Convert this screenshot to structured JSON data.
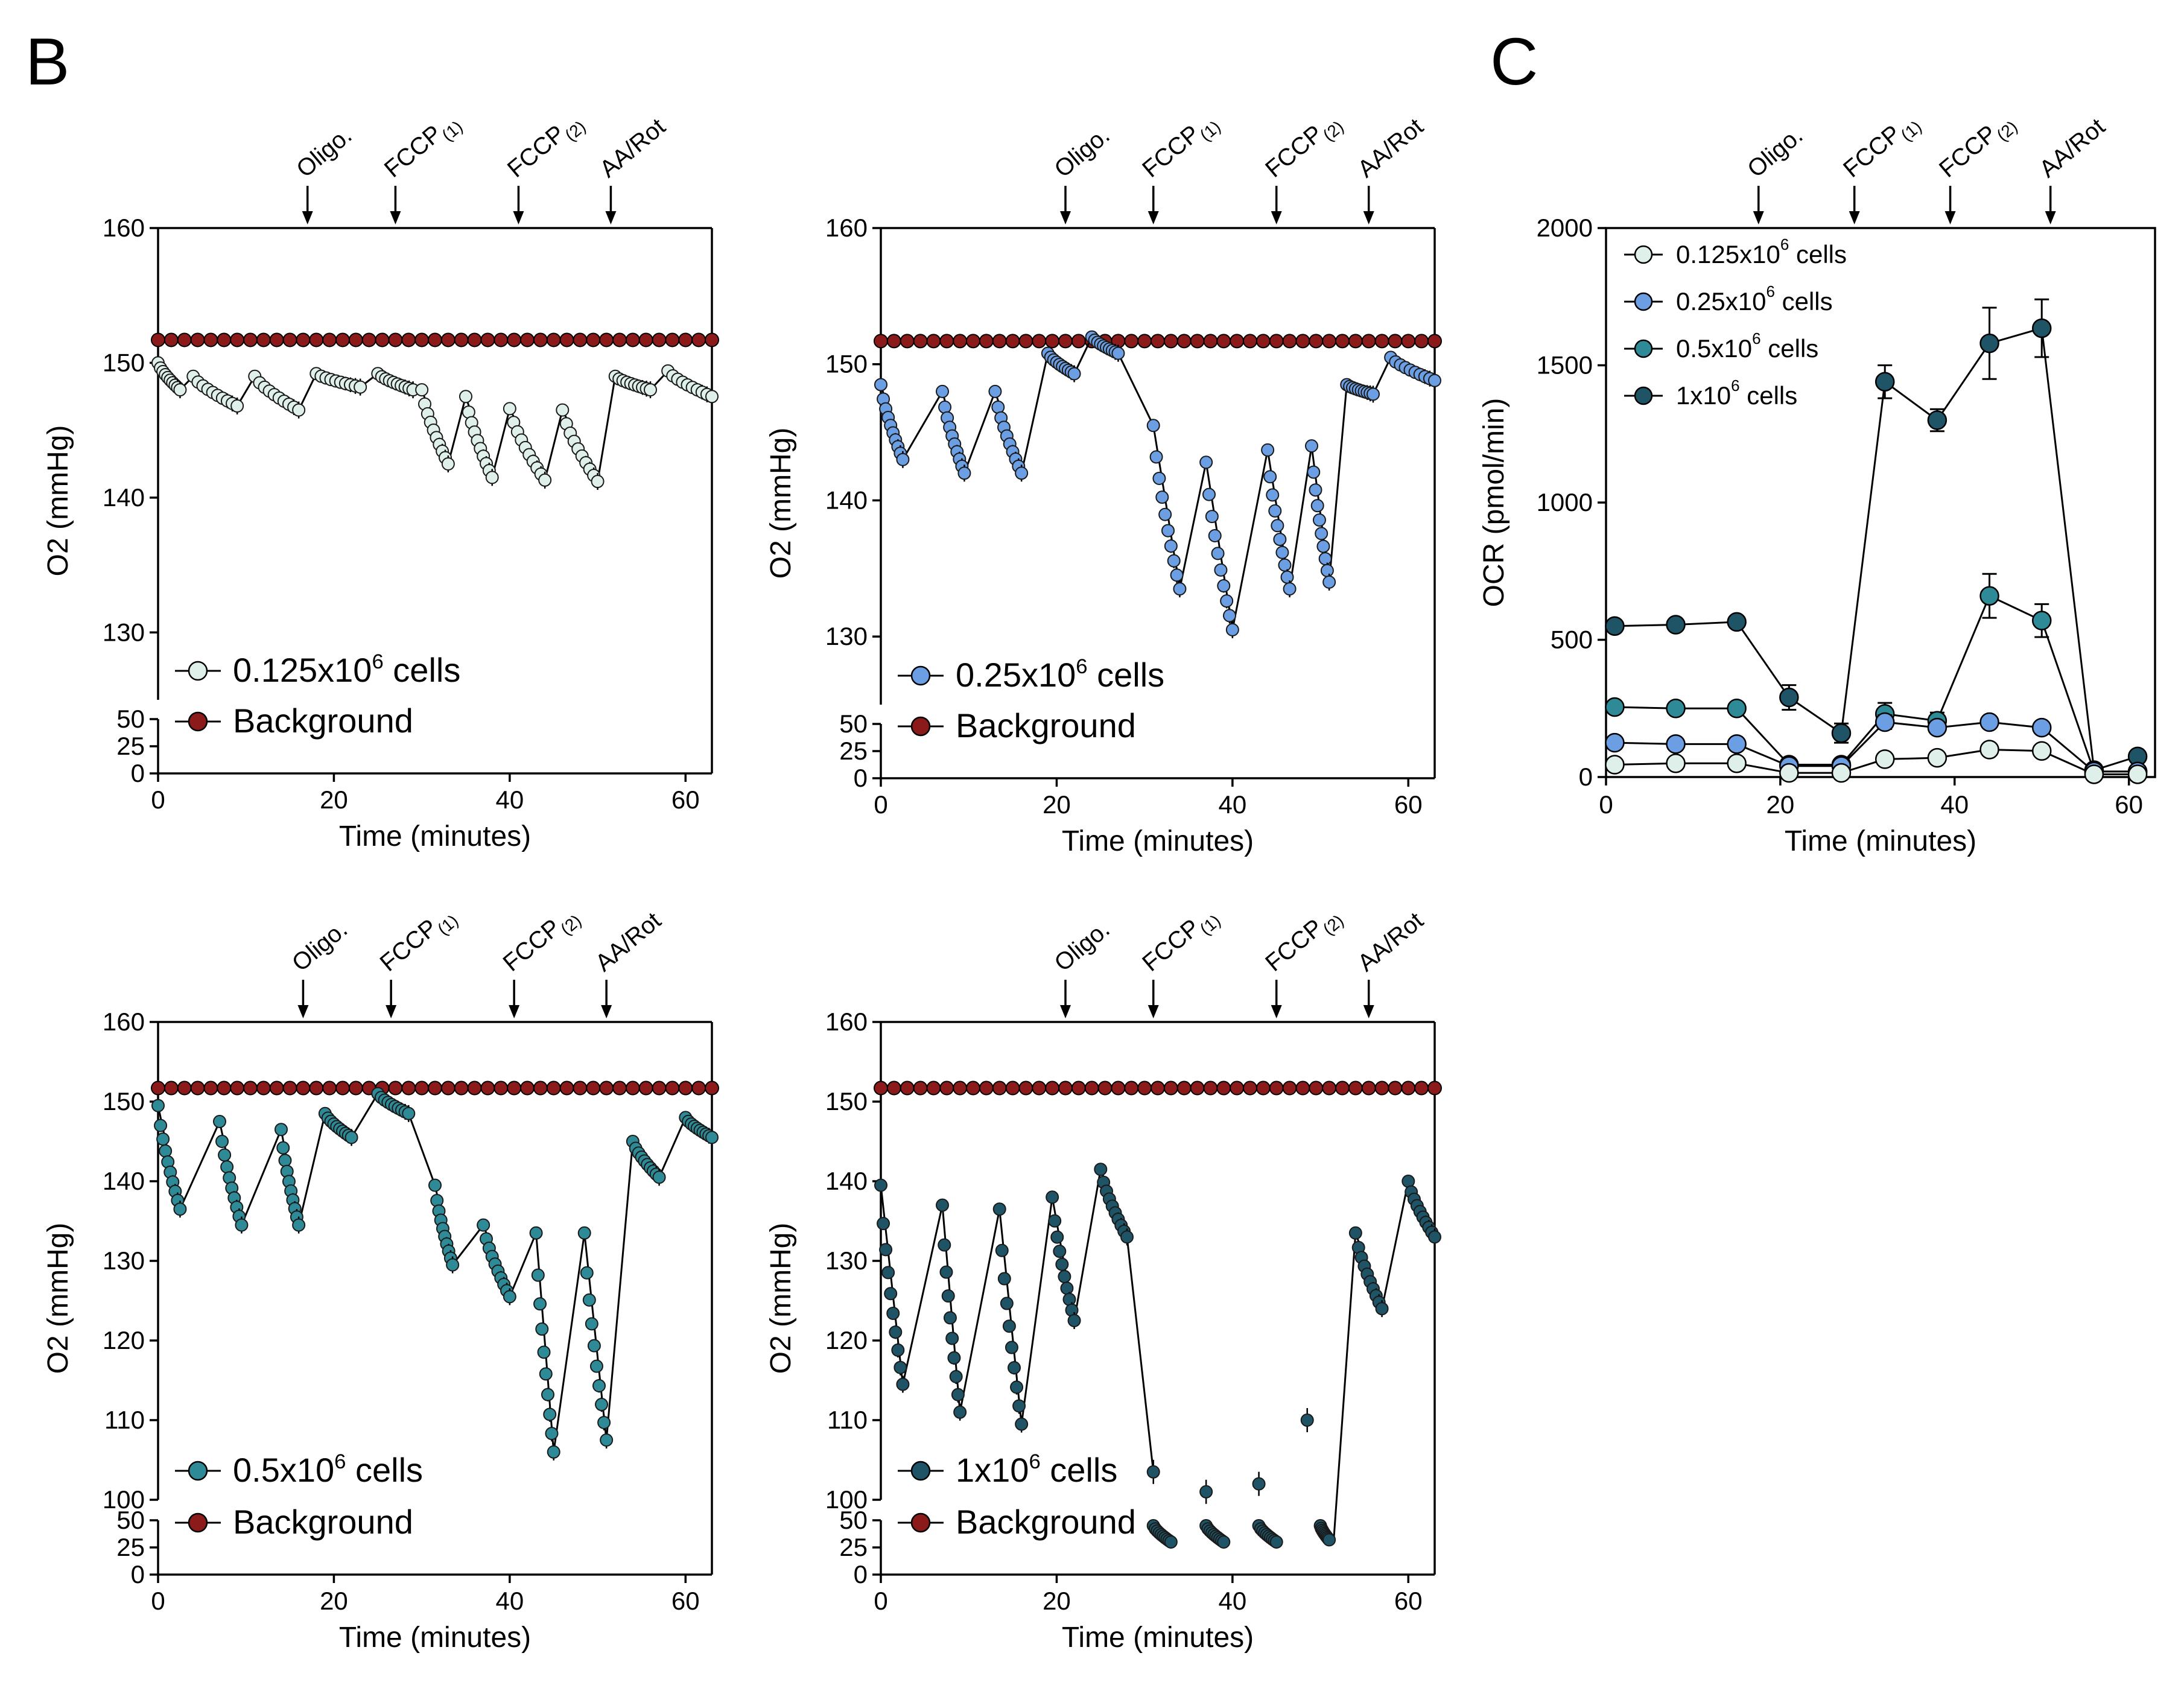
{
  "figure": {
    "panel_b_label": "B",
    "panel_c_label": "C",
    "injections": [
      {
        "label": "Oligo.",
        "main": "Oligo.",
        "sub": ""
      },
      {
        "label": "FCCP(1)",
        "main": "FCCP",
        "sub": "(1)"
      },
      {
        "label": "FCCP(2)",
        "main": "FCCP",
        "sub": "(2)"
      },
      {
        "label": "AA/Rot",
        "main": "AA/Rot",
        "sub": ""
      }
    ]
  },
  "chart_data": [
    {
      "type": "line",
      "panel": "B-1",
      "xlabel": "Time (minutes)",
      "ylabel": "O2 (mmHg)",
      "xlim": [
        0,
        63
      ],
      "ylim_upper": [
        125,
        160
      ],
      "ylim_lower": [
        0,
        50
      ],
      "xticks": [
        "0",
        "20",
        "40",
        "60"
      ],
      "yticks_upper": [
        "130",
        "140",
        "150",
        "160"
      ],
      "yticks_lower": [
        "0",
        "25",
        "50"
      ],
      "injection_times": [
        17,
        27,
        41,
        51.5
      ],
      "legend": [
        {
          "base": "0.125x10",
          "exp": "6",
          "tail": " cells",
          "color": "#dff0ea"
        },
        {
          "base": "Background",
          "exp": "",
          "tail": "",
          "color": "#8b1a1a"
        }
      ],
      "series": [
        {
          "name": "0.125x10^6 cells",
          "color": "#dff0ea",
          "segments": [
            [
              0,
              150,
              2.5,
              148
            ],
            [
              4,
              149,
              9,
              146.8
            ],
            [
              11,
              149,
              16,
              146.5
            ],
            [
              18,
              149.2,
              23,
              148.2
            ],
            [
              25,
              149.2,
              29,
              148
            ],
            [
              30,
              148,
              33,
              142.5
            ],
            [
              35,
              147.5,
              38,
              141.5
            ],
            [
              40,
              146.6,
              44,
              141.3
            ],
            [
              46,
              146.5,
              50,
              141.2
            ],
            [
              52,
              149,
              56,
              148
            ],
            [
              58,
              149.4,
              63,
              147.5
            ]
          ]
        },
        {
          "name": "Background",
          "color": "#8b1a1a",
          "level": 151.7
        }
      ]
    },
    {
      "type": "line",
      "panel": "B-2",
      "xlabel": "Time (minutes)",
      "ylabel": "O2 (mmHg)",
      "xlim": [
        0,
        63
      ],
      "ylim_upper": [
        125,
        160
      ],
      "ylim_lower": [
        0,
        50
      ],
      "xticks": [
        "0",
        "20",
        "40",
        "60"
      ],
      "yticks_upper": [
        "130",
        "140",
        "150",
        "160"
      ],
      "yticks_lower": [
        "0",
        "25",
        "50"
      ],
      "injection_times": [
        21,
        31,
        45,
        55.5
      ],
      "legend": [
        {
          "base": "0.25x10",
          "exp": "6",
          "tail": " cells",
          "color": "#6b9ee3"
        },
        {
          "base": "Background",
          "exp": "",
          "tail": "",
          "color": "#8b1a1a"
        }
      ],
      "series": [
        {
          "name": "0.25x10^6 cells",
          "color": "#6b9ee3",
          "segments": [
            [
              0,
              148.5,
              2.5,
              143
            ],
            [
              7,
              148,
              9.5,
              142
            ],
            [
              13,
              148,
              16,
              142
            ],
            [
              19,
              150.8,
              22,
              149.3
            ],
            [
              24,
              152,
              27,
              150.8
            ],
            [
              31,
              145.5,
              34,
              133.5
            ],
            [
              37,
              142.8,
              40,
              130.5
            ],
            [
              44,
              143.7,
              46.5,
              133.5
            ],
            [
              49,
              144,
              51,
              134
            ],
            [
              53,
              148.5,
              56,
              147.8
            ],
            [
              58,
              150.5,
              63,
              148.8
            ]
          ]
        },
        {
          "name": "Background",
          "color": "#8b1a1a",
          "level": 151.7
        }
      ]
    },
    {
      "type": "line",
      "panel": "B-3",
      "xlabel": "Time (minutes)",
      "ylabel": "O2 (mmHg)",
      "xlim": [
        0,
        63
      ],
      "ylim_upper": [
        100,
        160
      ],
      "ylim_lower": [
        0,
        50
      ],
      "xticks": [
        "0",
        "20",
        "40",
        "60"
      ],
      "yticks_upper": [
        "100",
        "110",
        "120",
        "130",
        "140",
        "150",
        "160"
      ],
      "yticks_lower": [
        "0",
        "25",
        "50"
      ],
      "injection_times": [
        16.5,
        26.5,
        40.5,
        51
      ],
      "legend": [
        {
          "base": "0.5x10",
          "exp": "6",
          "tail": " cells",
          "color": "#2e8a96"
        },
        {
          "base": "Background",
          "exp": "",
          "tail": "",
          "color": "#8b1a1a"
        }
      ],
      "series": [
        {
          "name": "0.5x10^6 cells",
          "color": "#2e8a96",
          "segments": [
            [
              0,
              149.5,
              2.5,
              136.5
            ],
            [
              7,
              147.5,
              9.5,
              134.5
            ],
            [
              14,
              146.5,
              16,
              134.5
            ],
            [
              19,
              148.5,
              22,
              145.5
            ],
            [
              25,
              151,
              28.5,
              148.5
            ],
            [
              31.5,
              139.5,
              33.5,
              129.5
            ],
            [
              37,
              134.5,
              40,
              125.5
            ],
            [
              43,
              133.5,
              45,
              106
            ],
            [
              48.5,
              133.5,
              51,
              107.5
            ],
            [
              54,
              145,
              57,
              140.5
            ],
            [
              60,
              148,
              63,
              145.5
            ]
          ]
        },
        {
          "name": "Background",
          "color": "#8b1a1a",
          "level": 151.7
        }
      ]
    },
    {
      "type": "line",
      "panel": "B-4",
      "xlabel": "Time (minutes)",
      "ylabel": "O2 (mmHg)",
      "xlim": [
        0,
        63
      ],
      "ylim_upper": [
        100,
        160
      ],
      "ylim_lower": [
        0,
        50
      ],
      "xticks": [
        "0",
        "20",
        "40",
        "60"
      ],
      "yticks_upper": [
        "100",
        "110",
        "120",
        "130",
        "140",
        "150",
        "160"
      ],
      "yticks_lower": [
        "0",
        "25",
        "50"
      ],
      "injection_times": [
        21,
        31,
        45,
        55.5
      ],
      "legend": [
        {
          "base": "1x10",
          "exp": "6",
          "tail": " cells",
          "color": "#1f5466"
        },
        {
          "base": "Background",
          "exp": "",
          "tail": "",
          "color": "#8b1a1a"
        }
      ],
      "series": [
        {
          "name": "1x10^6 cells",
          "color": "#1f5466",
          "segments": [
            [
              0,
              139.5,
              2.5,
              114.5
            ],
            [
              7,
              137,
              9,
              111
            ],
            [
              13.5,
              136.5,
              16,
              109.5
            ],
            [
              19.5,
              138,
              22,
              122.5
            ],
            [
              25,
              141.5,
              28,
              133
            ]
          ],
          "dropouts": [
            [
              31,
              103.5
            ],
            [
              37,
              101
            ],
            [
              43,
              102
            ],
            [
              48.5,
              110
            ]
          ],
          "low_segments": [
            [
              31,
              45,
              33,
              30
            ],
            [
              37,
              45,
              39,
              30
            ],
            [
              43,
              45,
              45,
              30
            ],
            [
              50,
              45,
              51,
              32
            ]
          ],
          "late_segments": [
            [
              54,
              133.5,
              57,
              124
            ],
            [
              60,
              140,
              63,
              133
            ]
          ]
        },
        {
          "name": "Background",
          "color": "#8b1a1a",
          "level": 151.7
        }
      ]
    },
    {
      "type": "line",
      "panel": "C",
      "xlabel": "Time (minutes)",
      "ylabel": "OCR (pmol/min)",
      "xlim": [
        0,
        63
      ],
      "ylim": [
        0,
        2000
      ],
      "xticks": [
        "0",
        "20",
        "40",
        "60"
      ],
      "yticks": [
        "0",
        "500",
        "1000",
        "1500",
        "2000"
      ],
      "injection_times": [
        17.5,
        28.5,
        39.5,
        51
      ],
      "x": [
        1,
        8,
        15,
        21,
        27,
        32,
        38,
        44,
        50,
        56,
        61
      ],
      "series": [
        {
          "name": "0.125x10^6 cells",
          "label_base": "0.125x10",
          "exp": "6",
          "tail": " cells",
          "color": "#dff0ea",
          "values": [
            45,
            50,
            50,
            15,
            15,
            65,
            70,
            100,
            95,
            10,
            10
          ],
          "errors": [
            0,
            0,
            0,
            0,
            0,
            0,
            0,
            0,
            0,
            0,
            0
          ]
        },
        {
          "name": "0.25x10^6 cells",
          "label_base": "0.25x10",
          "exp": "6",
          "tail": " cells",
          "color": "#6b9ee3",
          "values": [
            125,
            120,
            120,
            40,
            40,
            200,
            180,
            200,
            180,
            20,
            20
          ],
          "errors": [
            0,
            0,
            0,
            0,
            0,
            25,
            20,
            0,
            0,
            0,
            0
          ]
        },
        {
          "name": "0.5x10^6 cells",
          "label_base": "0.5x10",
          "exp": "6",
          "tail": " cells",
          "color": "#2e8a96",
          "values": [
            255,
            250,
            250,
            45,
            45,
            230,
            205,
            660,
            570,
            20,
            20
          ],
          "errors": [
            0,
            0,
            0,
            0,
            0,
            40,
            30,
            80,
            60,
            0,
            0
          ]
        },
        {
          "name": "1x10^6 cells",
          "label_base": "1x10",
          "exp": "6",
          "tail": " cells",
          "color": "#1f5466",
          "values": [
            550,
            555,
            565,
            290,
            160,
            1440,
            1300,
            1580,
            1635,
            25,
            75
          ],
          "errors": [
            0,
            0,
            0,
            45,
            35,
            60,
            40,
            130,
            105,
            0,
            0
          ]
        }
      ]
    }
  ]
}
